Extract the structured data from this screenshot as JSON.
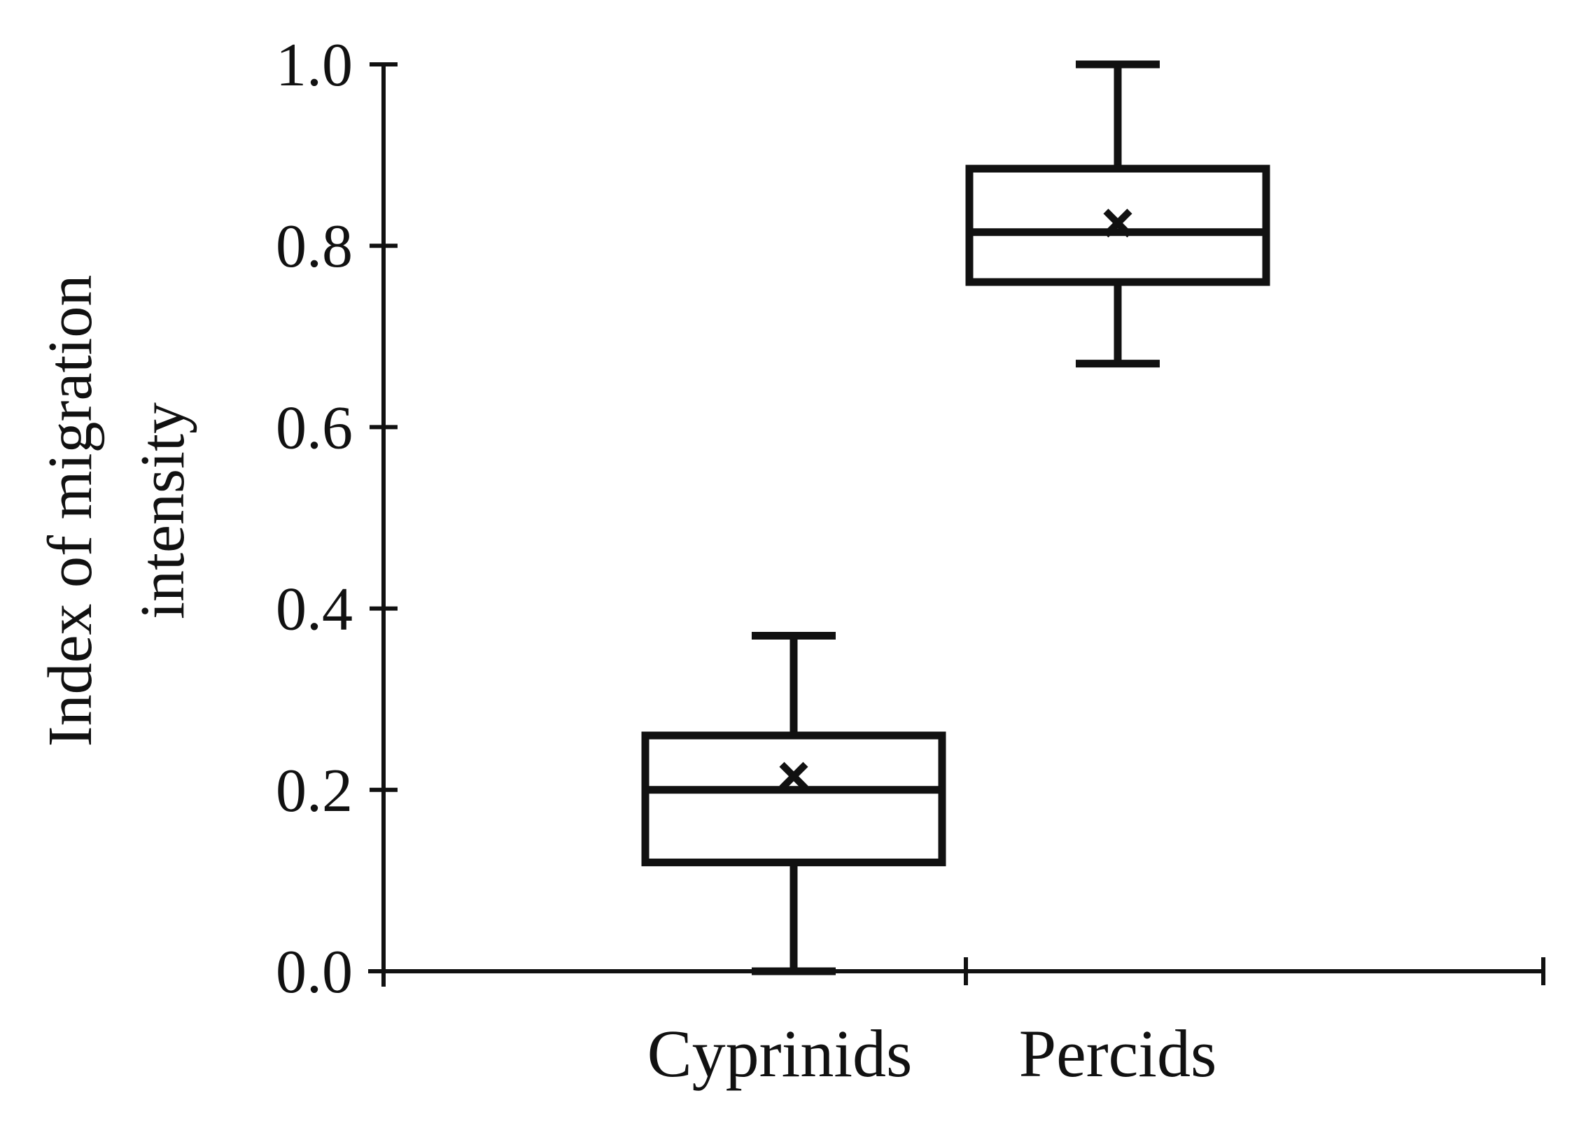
{
  "chart_data": {
    "type": "box",
    "title": "",
    "xlabel": "",
    "ylabel_lines": [
      "Index of migration",
      "intensity"
    ],
    "ylim": [
      0,
      1.0
    ],
    "yticks": [
      0.0,
      0.2,
      0.4,
      0.6,
      0.8,
      1.0
    ],
    "ytick_labels": [
      "0.0",
      "0.2",
      "0.4",
      "0.6",
      "0.8",
      "1.0"
    ],
    "categories": [
      "Cyprinids",
      "Percids"
    ],
    "boxes": [
      {
        "category": "Cyprinids",
        "min": 0.0,
        "q1": 0.12,
        "median": 0.2,
        "q3": 0.26,
        "max": 0.37,
        "mean": 0.215
      },
      {
        "category": "Percids",
        "min": 0.67,
        "q1": 0.76,
        "median": 0.815,
        "q3": 0.885,
        "max": 1.0,
        "mean": 0.825
      }
    ],
    "grid": false,
    "legend": "none",
    "colors": {
      "stroke": "#111111",
      "fill": "#ffffff"
    }
  }
}
